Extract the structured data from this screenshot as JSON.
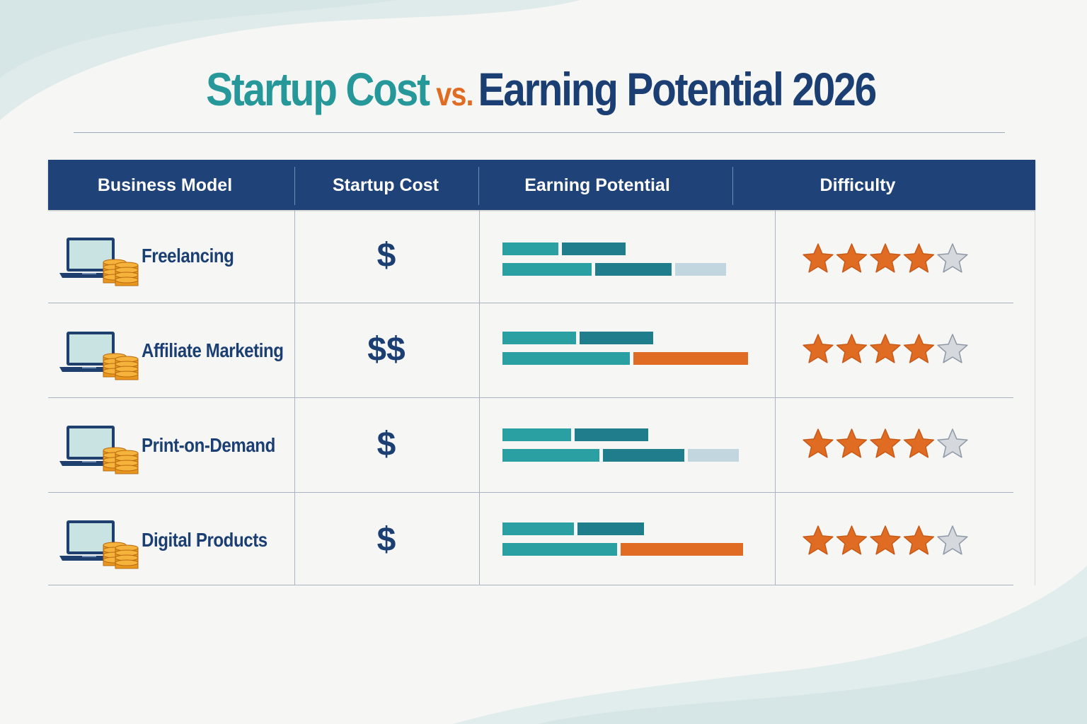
{
  "title": {
    "part1": "Startup Cost",
    "part2": "vs.",
    "part3": "Earning Potential 2026"
  },
  "colors": {
    "teal": "#2aa0a3",
    "dark_teal": "#1f7d8c",
    "orange": "#e06c23",
    "light_blue": "#c2d6e0",
    "navy": "#1f4278",
    "star_filled": "#e06c23",
    "star_empty": "#d5d9de"
  },
  "chart_data": {
    "type": "table",
    "columns": [
      "Business Model",
      "Startup Cost",
      "Earning Potential",
      "Difficulty"
    ],
    "rows": [
      {
        "model": "Freelancing",
        "icon": "laptop-coins-icon",
        "startup_cost": "$",
        "earning_potential": {
          "top": [
            {
              "value": 0.22,
              "color": "teal"
            },
            {
              "value": 0.25,
              "color": "dark_teal"
            }
          ],
          "bottom": [
            {
              "value": 0.35,
              "color": "teal"
            },
            {
              "value": 0.3,
              "color": "dark_teal"
            },
            {
              "value": 0.2,
              "color": "light_blue"
            }
          ]
        },
        "difficulty": 4,
        "difficulty_max": 5
      },
      {
        "model": "Affiliate Marketing",
        "icon": "laptop-coins-icon",
        "startup_cost": "$$",
        "earning_potential": {
          "top": [
            {
              "value": 0.29,
              "color": "teal"
            },
            {
              "value": 0.29,
              "color": "dark_teal"
            }
          ],
          "bottom": [
            {
              "value": 0.5,
              "color": "teal"
            },
            {
              "value": 0.45,
              "color": "orange"
            }
          ]
        },
        "difficulty": 4,
        "difficulty_max": 5
      },
      {
        "model": "Print-on-Demand",
        "icon": "laptop-coins-icon",
        "startup_cost": "$",
        "earning_potential": {
          "top": [
            {
              "value": 0.27,
              "color": "teal"
            },
            {
              "value": 0.29,
              "color": "dark_teal"
            }
          ],
          "bottom": [
            {
              "value": 0.38,
              "color": "teal"
            },
            {
              "value": 0.32,
              "color": "dark_teal"
            },
            {
              "value": 0.2,
              "color": "light_blue"
            }
          ]
        },
        "difficulty": 4,
        "difficulty_max": 5
      },
      {
        "model": "Digital Products",
        "icon": "laptop-coins-icon",
        "startup_cost": "$",
        "earning_potential": {
          "top": [
            {
              "value": 0.28,
              "color": "teal"
            },
            {
              "value": 0.26,
              "color": "dark_teal"
            }
          ],
          "bottom": [
            {
              "value": 0.45,
              "color": "teal"
            },
            {
              "value": 0.48,
              "color": "orange"
            }
          ]
        },
        "difficulty": 4,
        "difficulty_max": 5
      }
    ]
  }
}
